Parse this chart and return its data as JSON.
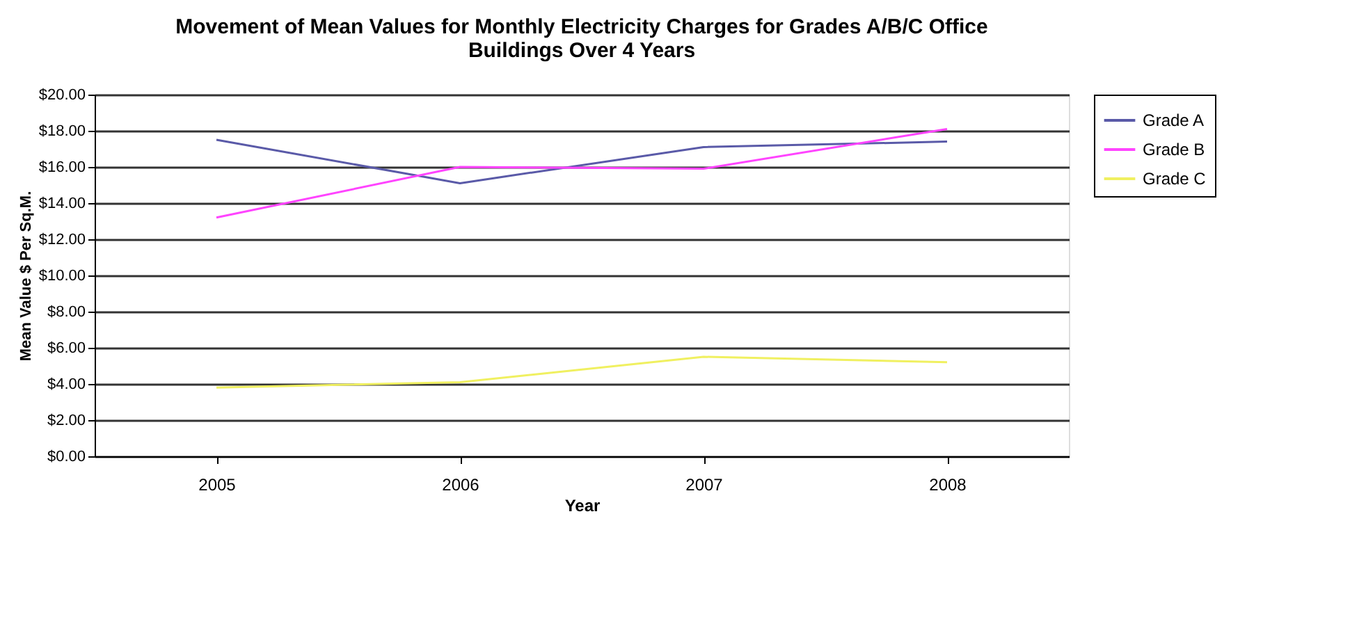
{
  "chart_data": {
    "type": "line",
    "title": [
      "Movement of Mean Values for Monthly Electricity Charges for Grades A/B/C Office",
      "Buildings Over 4 Years"
    ],
    "xlabel": "Year",
    "ylabel": "Mean Value $ Per Sq.M.",
    "categories": [
      "2005",
      "2006",
      "2007",
      "2008"
    ],
    "series": [
      {
        "name": "Grade A",
        "color": "#5a5aa8",
        "values": [
          17.5,
          15.1,
          17.1,
          17.4
        ]
      },
      {
        "name": "Grade B",
        "color": "#ff44ff",
        "values": [
          13.2,
          16.0,
          15.9,
          18.1
        ]
      },
      {
        "name": "Grade C",
        "color": "#f0f060",
        "values": [
          3.8,
          4.1,
          5.5,
          5.2
        ]
      }
    ],
    "ylim": [
      0,
      20
    ],
    "yticks": [
      {
        "value": 0,
        "label": "$0.00"
      },
      {
        "value": 2,
        "label": "$2.00"
      },
      {
        "value": 4,
        "label": "$4.00"
      },
      {
        "value": 6,
        "label": "$6.00"
      },
      {
        "value": 8,
        "label": "$8.00"
      },
      {
        "value": 10,
        "label": "$10.00"
      },
      {
        "value": 12,
        "label": "$12.00"
      },
      {
        "value": 14,
        "label": "$14.00"
      },
      {
        "value": 16,
        "label": "$16.00"
      },
      {
        "value": 18,
        "label": "$18.00"
      },
      {
        "value": 20,
        "label": "$20.00"
      }
    ],
    "grid": "y",
    "legend": "right",
    "marker": "none",
    "line_style": "solid"
  }
}
